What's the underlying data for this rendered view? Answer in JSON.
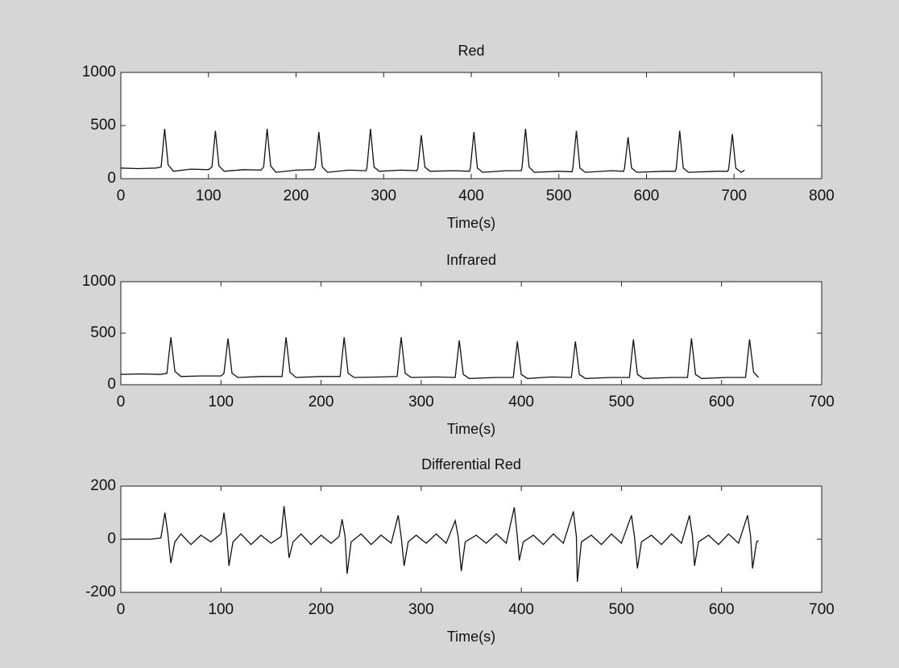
{
  "chart_data": [
    {
      "type": "line",
      "title": "Red",
      "xlabel": "Time(s)",
      "color": "#111111",
      "xlim": [
        0,
        800
      ],
      "ylim": [
        0,
        1000
      ],
      "xticks": [
        0,
        100,
        200,
        300,
        400,
        500,
        600,
        700,
        800
      ],
      "yticks": [
        0,
        500,
        1000
      ],
      "x": [
        0,
        20,
        40,
        46,
        50,
        54,
        60,
        80,
        100,
        104,
        108,
        112,
        118,
        140,
        160,
        163,
        167,
        171,
        177,
        200,
        220,
        222,
        226,
        230,
        236,
        260,
        280,
        281,
        285,
        289,
        295,
        320,
        338,
        339,
        343,
        347,
        353,
        380,
        398,
        399,
        403,
        407,
        413,
        440,
        457,
        458,
        462,
        466,
        472,
        500,
        515,
        516,
        520,
        524,
        530,
        560,
        574,
        575,
        579,
        583,
        589,
        620,
        633,
        634,
        638,
        642,
        648,
        680,
        693,
        694,
        698,
        702,
        708,
        712
      ],
      "values": [
        100,
        95,
        100,
        110,
        470,
        130,
        70,
        90,
        85,
        110,
        450,
        120,
        70,
        85,
        80,
        110,
        470,
        120,
        60,
        80,
        85,
        110,
        440,
        110,
        60,
        80,
        75,
        110,
        470,
        110,
        70,
        80,
        75,
        100,
        410,
        110,
        70,
        75,
        70,
        100,
        440,
        100,
        60,
        75,
        75,
        110,
        470,
        110,
        60,
        70,
        65,
        100,
        450,
        100,
        60,
        75,
        70,
        100,
        390,
        100,
        60,
        70,
        70,
        100,
        450,
        100,
        60,
        70,
        70,
        100,
        420,
        100,
        60,
        80
      ]
    },
    {
      "type": "line",
      "title": "Infrared",
      "xlabel": "Time(s)",
      "color": "#111111",
      "xlim": [
        0,
        700
      ],
      "ylim": [
        0,
        1000
      ],
      "xticks": [
        0,
        100,
        200,
        300,
        400,
        500,
        600,
        700
      ],
      "yticks": [
        0,
        500,
        1000
      ],
      "x": [
        0,
        20,
        40,
        46,
        50,
        54,
        60,
        80,
        100,
        103,
        107,
        111,
        117,
        140,
        161,
        165,
        169,
        175,
        200,
        219,
        223,
        227,
        233,
        260,
        276,
        280,
        284,
        290,
        315,
        334,
        338,
        342,
        348,
        375,
        392,
        396,
        400,
        406,
        430,
        450,
        454,
        458,
        464,
        490,
        508,
        512,
        516,
        522,
        550,
        566,
        570,
        574,
        580,
        605,
        624,
        628,
        632,
        637
      ],
      "values": [
        100,
        105,
        100,
        110,
        460,
        130,
        80,
        85,
        85,
        110,
        450,
        110,
        70,
        80,
        80,
        460,
        120,
        70,
        80,
        80,
        460,
        110,
        70,
        75,
        80,
        460,
        110,
        70,
        75,
        70,
        430,
        100,
        60,
        70,
        70,
        420,
        100,
        60,
        75,
        70,
        420,
        100,
        60,
        70,
        70,
        440,
        100,
        60,
        70,
        70,
        450,
        100,
        60,
        70,
        70,
        440,
        120,
        70
      ]
    },
    {
      "type": "line",
      "title": "Differential Red",
      "xlabel": "Time(s)",
      "color": "#111111",
      "xlim": [
        0,
        700
      ],
      "ylim": [
        -200,
        200
      ],
      "xticks": [
        0,
        100,
        200,
        300,
        400,
        500,
        600,
        700
      ],
      "yticks": [
        -200,
        0,
        200
      ],
      "x": [
        0,
        30,
        40,
        44,
        47,
        50,
        54,
        60,
        70,
        80,
        90,
        100,
        103,
        106,
        108,
        112,
        120,
        130,
        140,
        150,
        160,
        163,
        166,
        168,
        172,
        180,
        190,
        200,
        210,
        218,
        221,
        224,
        226,
        230,
        240,
        250,
        260,
        270,
        277,
        280,
        283,
        287,
        295,
        305,
        315,
        325,
        334,
        337,
        340,
        344,
        355,
        365,
        375,
        385,
        393,
        396,
        398,
        402,
        412,
        422,
        432,
        442,
        452,
        455,
        456,
        460,
        470,
        480,
        490,
        500,
        510,
        513,
        516,
        520,
        530,
        540,
        550,
        560,
        568,
        571,
        573,
        577,
        587,
        597,
        607,
        617,
        626,
        629,
        631,
        635,
        637
      ],
      "values": [
        0,
        0,
        5,
        100,
        20,
        -90,
        -10,
        20,
        -20,
        15,
        -10,
        20,
        100,
        10,
        -100,
        -10,
        20,
        -20,
        15,
        -15,
        10,
        125,
        20,
        -70,
        -10,
        20,
        -20,
        15,
        -15,
        10,
        75,
        10,
        -130,
        -10,
        20,
        -20,
        15,
        -15,
        90,
        10,
        -100,
        -10,
        15,
        -15,
        20,
        -15,
        70,
        10,
        -120,
        -10,
        15,
        -15,
        20,
        -15,
        120,
        10,
        -80,
        -10,
        15,
        -20,
        20,
        -15,
        105,
        10,
        -160,
        -10,
        15,
        -20,
        20,
        -15,
        90,
        10,
        -110,
        -10,
        15,
        -20,
        20,
        -15,
        90,
        10,
        -100,
        -10,
        15,
        -20,
        20,
        -15,
        90,
        10,
        -110,
        -10,
        -5
      ]
    }
  ]
}
